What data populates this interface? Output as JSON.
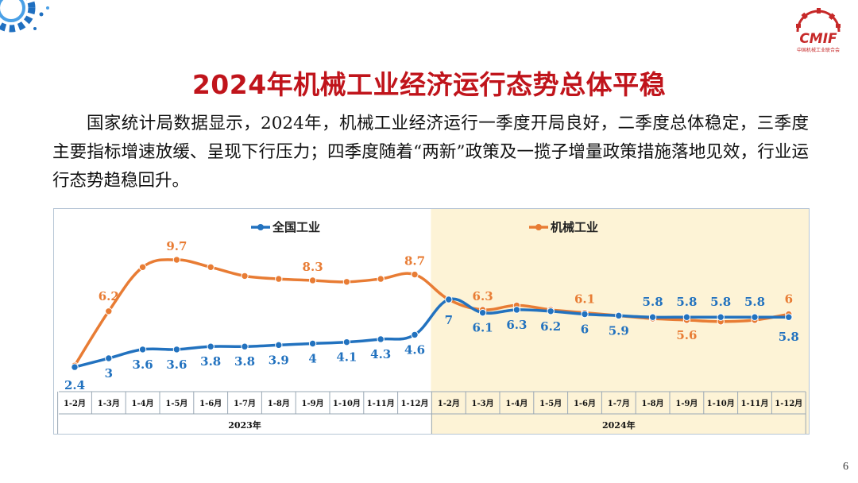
{
  "title": "2024年机械工业经济运行态势总体平稳",
  "paragraph": "国家统计局数据显示，2024年，机械工业经济运行一季度开局良好，二季度总体稳定，三季度主要指标增速放缓、呈现下行压力；四季度随着“两新”政策及一揽子增量政策措施落地见效，行业运行态势趋稳回升。",
  "logo": {
    "mark": "CMIF",
    "caption": "中国机械工业联合会"
  },
  "page_number": "6",
  "colors": {
    "title": "#c0141b",
    "national": "#2272bf",
    "machinery": "#e87c34",
    "highlight_2024": "#fdf3d6"
  },
  "chart_data": {
    "type": "line",
    "categories": [
      "1-2月",
      "1-3月",
      "1-4月",
      "1-5月",
      "1-6月",
      "1-7月",
      "1-8月",
      "1-9月",
      "1-10月",
      "1-11月",
      "1-12月",
      "1-2月",
      "1-3月",
      "1-4月",
      "1-5月",
      "1-6月",
      "1-7月",
      "1-8月",
      "1-9月",
      "1-10月",
      "1-11月",
      "1-12月"
    ],
    "year_groups": [
      {
        "label": "2023年",
        "start": 0,
        "end": 10
      },
      {
        "label": "2024年",
        "start": 11,
        "end": 21,
        "highlighted": true
      }
    ],
    "series": [
      {
        "name": "全国工业",
        "color": "#2272bf",
        "values": [
          2.4,
          3,
          3.6,
          3.6,
          3.8,
          3.8,
          3.9,
          4,
          4.1,
          4.3,
          4.6,
          7,
          6.1,
          6.3,
          6.2,
          6,
          5.9,
          5.8,
          5.8,
          5.8,
          5.8,
          5.8
        ]
      },
      {
        "name": "机械工业",
        "color": "#e87c34",
        "values": [
          2.5,
          6.2,
          9.2,
          9.7,
          9.2,
          8.6,
          8.4,
          8.3,
          8.2,
          8.4,
          8.7,
          7.0,
          6.3,
          6.6,
          6.3,
          6.1,
          5.9,
          5.7,
          5.6,
          5.5,
          5.6,
          6
        ],
        "labels": {
          "1": "6.2",
          "3": "9.7",
          "7": "8.3",
          "10": "8.7",
          "12": "6.3",
          "15": "6.1",
          "18": "5.6",
          "21": "6"
        }
      }
    ],
    "national_labels": [
      "2.4",
      "3",
      "3.6",
      "3.6",
      "3.8",
      "3.8",
      "3.9",
      "4",
      "4.1",
      "4.3",
      "4.6",
      "7",
      "6.1",
      "6.3",
      "6.2",
      "6",
      "5.9",
      "5.8",
      "5.8",
      "5.8",
      "5.8",
      "5.8"
    ],
    "legend": [
      "全国工业",
      "机械工业"
    ],
    "ylim": [
      1,
      11
    ],
    "grid": false
  }
}
